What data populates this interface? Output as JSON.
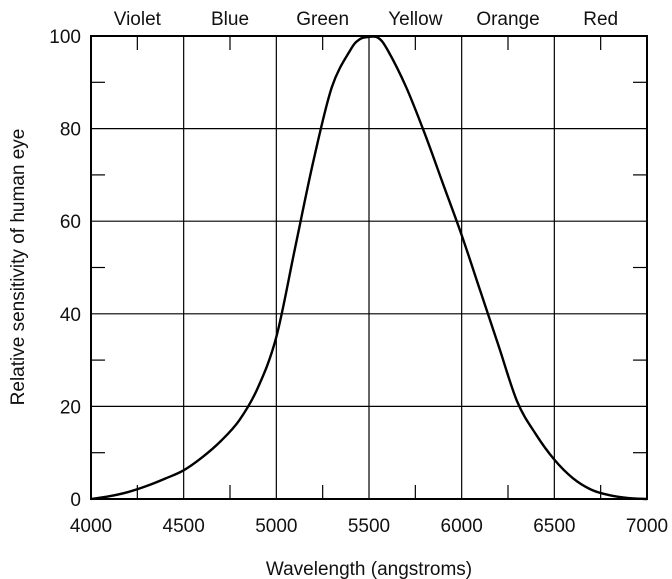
{
  "chart_data": {
    "type": "line",
    "title": "",
    "xlabel": "Wavelength (angstroms)",
    "ylabel": "Relative sensitivity of human eye",
    "xlim": [
      4000,
      7000
    ],
    "ylim": [
      0,
      100
    ],
    "x_ticks": [
      4000,
      4500,
      5000,
      5500,
      6000,
      6500,
      7000
    ],
    "y_ticks": [
      0,
      20,
      40,
      60,
      80,
      100
    ],
    "grid": true,
    "legend": "none",
    "color_bands": [
      "Violet",
      "Blue",
      "Green",
      "Yellow",
      "Orange",
      "Red"
    ],
    "series": [
      {
        "x": [
          4000,
          4100,
          4200,
          4300,
          4400,
          4500,
          4600,
          4700,
          4800,
          4900,
          5000,
          5100,
          5200,
          5300,
          5400,
          5450,
          5500,
          5550,
          5600,
          5700,
          5800,
          5900,
          6000,
          6100,
          6200,
          6300,
          6400,
          6500,
          6600,
          6700,
          6800,
          6900,
          7000
        ],
        "y": [
          0,
          0.6,
          1.5,
          2.8,
          4.4,
          6.2,
          9,
          12.5,
          17,
          24,
          35,
          54,
          73,
          89,
          97,
          99.3,
          99.8,
          99.6,
          97,
          89,
          79,
          68,
          57,
          45,
          33,
          21,
          14,
          8.5,
          4.5,
          2,
          0.8,
          0.2,
          0
        ]
      }
    ]
  }
}
